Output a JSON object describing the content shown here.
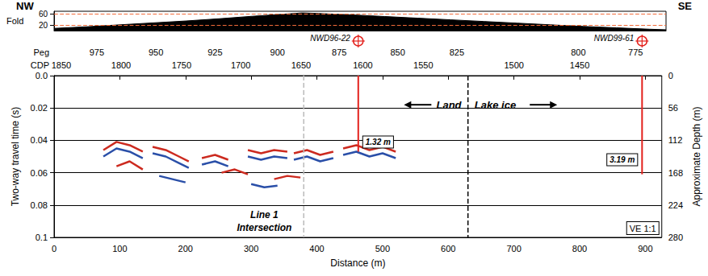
{
  "chart_data": [
    {
      "type": "area",
      "corner_labels": [
        "NW",
        "SE"
      ],
      "ylabel": "Fold",
      "x": [
        0,
        50,
        100,
        150,
        200,
        250,
        300,
        350,
        375,
        400,
        450,
        500,
        550,
        600,
        650,
        700,
        750,
        800,
        850,
        900,
        925
      ],
      "values": [
        8,
        14,
        21,
        28,
        35,
        43,
        52,
        60,
        64,
        62,
        57,
        51,
        45,
        39,
        33,
        27,
        21,
        15,
        10,
        5,
        3
      ],
      "color": "#000000",
      "xlim": [
        0,
        925
      ],
      "ylim": [
        0,
        70
      ],
      "yticks": [
        20,
        60
      ],
      "hlines": [
        20,
        60
      ],
      "hline_color": "#f26b3a",
      "line_style": "dashed",
      "tick_labels": "y"
    },
    {
      "type": "seismic",
      "xlabel": "Distance (m)",
      "ylabel": "Two-way travel time (s)",
      "y2label": "Approximate Depth (m)",
      "xlim": [
        0,
        925
      ],
      "xticks": [
        0,
        100,
        200,
        300,
        400,
        500,
        600,
        700,
        800,
        900
      ],
      "ylim": [
        0,
        0.1
      ],
      "yticks": [
        {
          "value": 0,
          "label": "0.0"
        },
        0.02,
        0.04,
        0.06,
        0.08,
        0.1
      ],
      "y2lim": [
        0,
        280
      ],
      "y2ticks": [
        0,
        56,
        112,
        168,
        224,
        280
      ],
      "grid": true,
      "top_axes": [
        {
          "label": "Peg",
          "ticks": [
            {
              "value": 65,
              "label": "975"
            },
            {
              "value": 155,
              "label": "950"
            },
            {
              "value": 245,
              "label": "925"
            },
            {
              "value": 340,
              "label": "900"
            },
            {
              "value": 434,
              "label": "875"
            },
            {
              "value": 523,
              "label": "850"
            },
            {
              "value": 613,
              "label": "825"
            },
            {
              "value": 798,
              "label": "800"
            },
            {
              "value": 885,
              "label": "775"
            }
          ]
        },
        {
          "label": "CDP",
          "ticks": [
            {
              "value": 11,
              "label": "1850"
            },
            {
              "value": 102,
              "label": "1800"
            },
            {
              "value": 194,
              "label": "1750"
            },
            {
              "value": 284,
              "label": "1700"
            },
            {
              "value": 376,
              "label": "1650"
            },
            {
              "value": 470,
              "label": "1600"
            },
            {
              "value": 562,
              "label": "1550"
            },
            {
              "value": 700,
              "label": "1500"
            },
            {
              "value": 800,
              "label": "1450"
            }
          ]
        }
      ],
      "wells": [
        {
          "name": "NWD96-22",
          "x": 463,
          "bottom": 0.047,
          "thickness_label": "1.32 m",
          "label_y": 0.041,
          "label_side": "right",
          "color": "#e3211c"
        },
        {
          "name": "NWD99-61",
          "x": 895,
          "bottom": 0.061,
          "thickness_label": "3.19 m",
          "label_y": 0.052,
          "label_side": "left",
          "color": "#e3211c"
        }
      ],
      "boundaries": [
        {
          "x": 630,
          "line_style": "dashed",
          "color": "#000000"
        },
        {
          "x": 380,
          "line_style": "dashed",
          "color": "#bbbbbb"
        }
      ],
      "annotations": [
        {
          "text": "Land",
          "x": 620,
          "y": 0.018,
          "arrow": "left"
        },
        {
          "text": "Lake ice",
          "x": 640,
          "y": 0.018,
          "arrow": "right"
        },
        {
          "text": "Line 1",
          "x": 320,
          "y": 0.086
        },
        {
          "text": "Intersection",
          "x": 320,
          "y": 0.094
        },
        {
          "text": "VE 1:1",
          "x": 925,
          "y": 0.1,
          "box": true
        }
      ],
      "series": [
        {
          "color": "#cc2a1f",
          "x": [
            75,
            95,
            115,
            135,
            null,
            150,
            170,
            190,
            205,
            null,
            95,
            115,
            135,
            null,
            225,
            245,
            265,
            null,
            295,
            315,
            335,
            355,
            null,
            365,
            385,
            405,
            425,
            null,
            440,
            460,
            480,
            500,
            520,
            null,
            255,
            275,
            295,
            null,
            335,
            355,
            375
          ],
          "values": [
            0.046,
            0.041,
            0.043,
            0.047,
            null,
            0.044,
            0.046,
            0.05,
            0.053,
            null,
            0.056,
            0.053,
            0.058,
            null,
            0.051,
            0.049,
            0.052,
            null,
            0.046,
            0.048,
            0.046,
            0.047,
            null,
            0.048,
            0.046,
            0.049,
            0.047,
            null,
            0.045,
            0.043,
            0.046,
            0.044,
            0.047,
            null,
            0.06,
            0.058,
            0.061,
            null,
            0.064,
            0.062,
            0.063
          ]
        },
        {
          "color": "#2a4fa8",
          "x": [
            75,
            95,
            115,
            135,
            null,
            150,
            170,
            190,
            205,
            null,
            225,
            245,
            265,
            null,
            295,
            315,
            335,
            355,
            null,
            365,
            385,
            405,
            425,
            null,
            440,
            460,
            480,
            500,
            520,
            null,
            160,
            180,
            200,
            null,
            300,
            320,
            340
          ],
          "values": [
            0.05,
            0.045,
            0.047,
            0.051,
            null,
            0.048,
            0.05,
            0.054,
            0.057,
            null,
            0.055,
            0.053,
            0.056,
            null,
            0.05,
            0.052,
            0.05,
            0.051,
            null,
            0.052,
            0.05,
            0.053,
            0.051,
            null,
            0.049,
            0.047,
            0.05,
            0.048,
            0.051,
            null,
            0.062,
            0.064,
            0.066,
            null,
            0.067,
            0.069,
            0.068
          ]
        }
      ]
    }
  ]
}
